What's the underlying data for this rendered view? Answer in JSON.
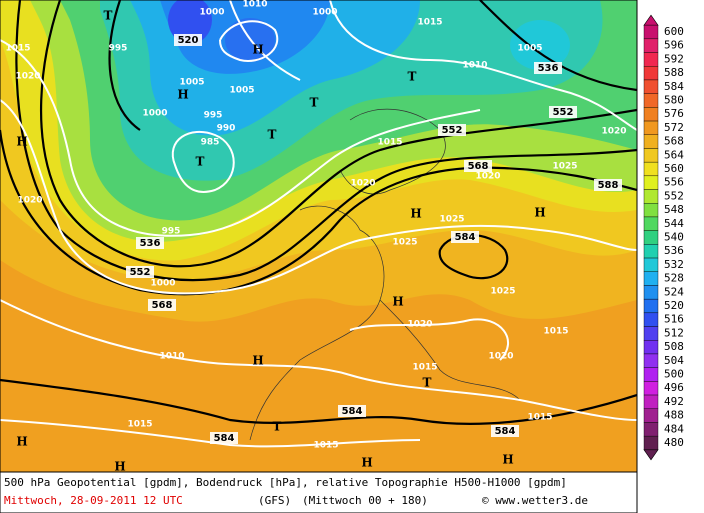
{
  "map": {
    "labels": [
      1000,
      1010,
      1000,
      1015,
      520,
      "H",
      995,
      1005,
      536,
      1015,
      1020,
      1010,
      "T",
      "H",
      1005,
      1005,
      "T",
      1000,
      995,
      990,
      "T",
      552,
      552,
      1020,
      1015,
      985,
      "T",
      "H",
      568,
      1025,
      1020,
      588,
      1020,
      1020,
      "H",
      1025,
      "H",
      995,
      584,
      536,
      1025,
      552,
      1000,
      1025,
      568,
      "H",
      1020,
      1015,
      1010,
      "H",
      1020,
      1015,
      "T",
      584,
      584,
      1015,
      "T",
      584,
      1015,
      1015,
      "H",
      "H",
      "H",
      "H",
      "T"
    ]
  },
  "legend": {
    "labels": [
      600,
      596,
      592,
      588,
      584,
      580,
      576,
      572,
      568,
      564,
      560,
      556,
      552,
      548,
      544,
      540,
      536,
      532,
      528,
      524,
      520,
      516,
      512,
      508,
      504,
      500,
      496,
      492,
      488,
      484,
      480
    ]
  },
  "footer": {
    "description": "500 hPa Geopotential [gpdm], Bodendruck [hPa], relative Topographie H500-H1000 [gpdm]",
    "valid_time": "Mittwoch, 28-09-2011  12 UTC",
    "model": "(GFS)",
    "run": "(Mittwoch 00 + 180)",
    "credit": "© www.wetter3.de"
  }
}
